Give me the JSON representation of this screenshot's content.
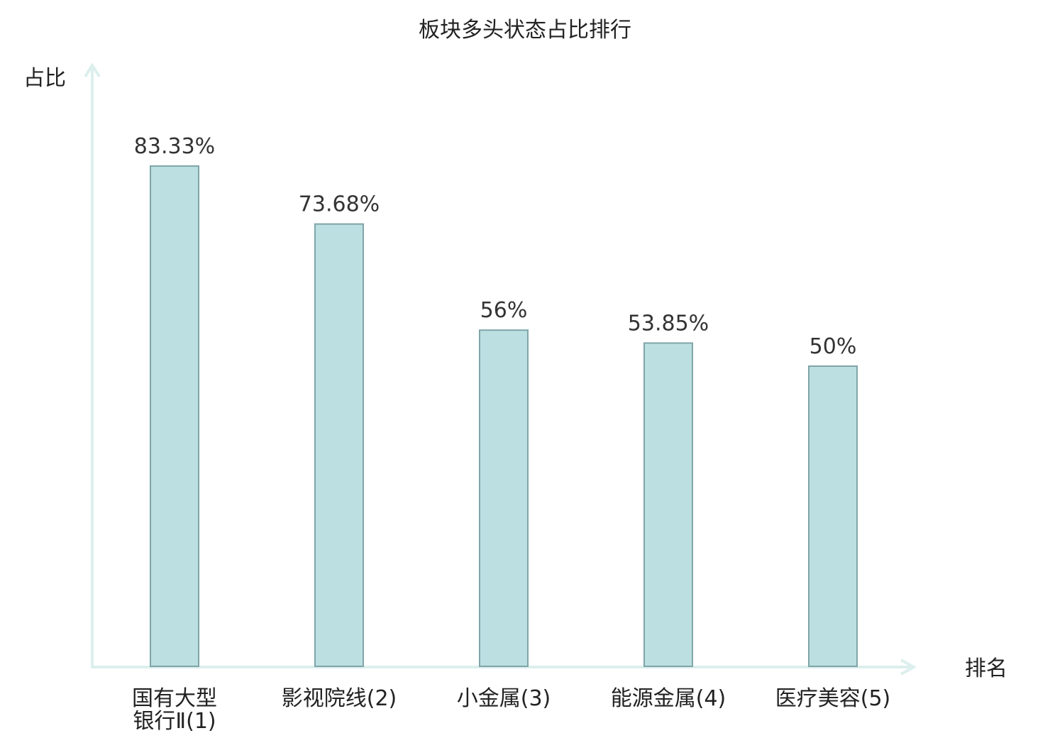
{
  "chart_data": {
    "type": "bar",
    "title": "板块多头状态占比排行",
    "ylabel": "占比",
    "xlabel": "排名",
    "categories": [
      [
        "国有大型",
        "银行Ⅱ(1)"
      ],
      [
        "影视院线(2)"
      ],
      [
        "小金属(3)"
      ],
      [
        "能源金属(4)"
      ],
      [
        "医疗美容(5)"
      ]
    ],
    "values": [
      83.33,
      73.68,
      56,
      53.85,
      50
    ],
    "value_labels": [
      "83.33%",
      "73.68%",
      "56%",
      "53.85%",
      "50%"
    ],
    "highlight_index": 3,
    "ylim": [
      0,
      100
    ],
    "grid": false,
    "colors": {
      "bar_fill": "#bce0e2",
      "bar_stroke": "#7fa5a8",
      "axis": "#dcefed",
      "highlight_text": "#e0201b",
      "text": "#222222"
    }
  }
}
